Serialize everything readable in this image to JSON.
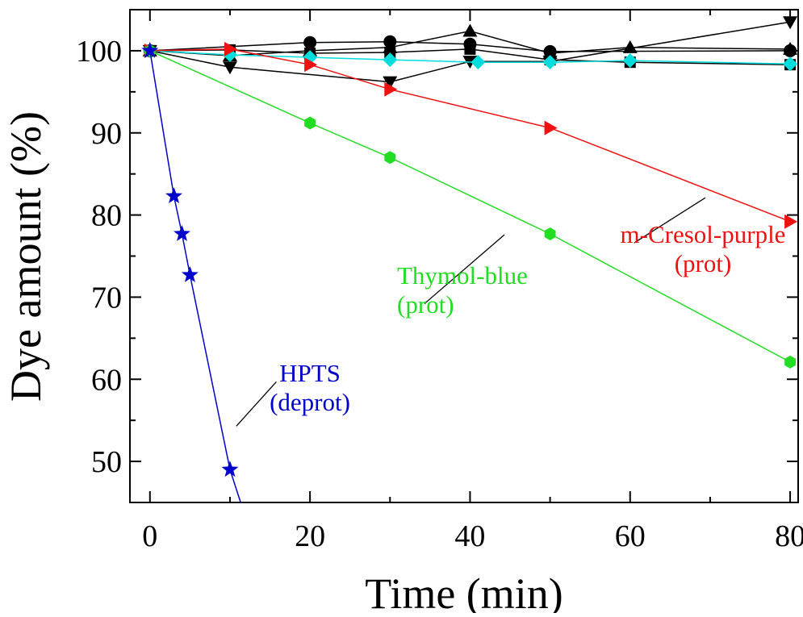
{
  "chart_data": {
    "type": "scatter",
    "xlabel": "Time (min)",
    "ylabel": "Dye amount (%)",
    "xlim": [
      -2.5,
      81
    ],
    "ylim": [
      45,
      105
    ],
    "x_ticks": [
      "0",
      "20",
      "40",
      "60",
      "80"
    ],
    "y_ticks": [
      "50",
      "60",
      "70",
      "80",
      "90",
      "100"
    ],
    "grid": false,
    "series": [
      {
        "name": "HPTS (deprot)",
        "label_lines": [
          "HPTS",
          "(deprot)"
        ],
        "color": "#0000cc",
        "marker": "star",
        "x": [
          0,
          3,
          4,
          5,
          10
        ],
        "y": [
          100,
          82.3,
          77.7,
          72.7,
          49
        ],
        "fit_line": {
          "x": [
            0,
            3,
            4,
            5,
            10,
            12
          ],
          "y": [
            100,
            82.3,
            77.7,
            72.7,
            49,
            43
          ]
        }
      },
      {
        "name": "Thymol-blue (prot)",
        "label_lines": [
          "Thymol-blue",
          "(prot)"
        ],
        "color": "#22dd22",
        "marker": "hexagon",
        "x": [
          0,
          20,
          30,
          50,
          80
        ],
        "y": [
          100,
          91.2,
          87,
          77.7,
          62.1
        ]
      },
      {
        "name": "m-Cresol-purple (prot)",
        "label_lines": [
          "m-Cresol-purple",
          "(prot)"
        ],
        "color": "#ee1111",
        "marker": "triangle-right",
        "x": [
          0,
          10,
          20,
          30,
          50,
          80
        ],
        "y": [
          100,
          100.2,
          98.3,
          95.3,
          90.6,
          79.2
        ]
      },
      {
        "color": "#00dddd",
        "marker": "diamond",
        "x": [
          0,
          10,
          20,
          30,
          41,
          50,
          60,
          80
        ],
        "y": [
          100,
          99.5,
          99.2,
          98.9,
          98.6,
          98.6,
          98.8,
          98.4
        ]
      },
      {
        "color": "#000000",
        "marker": "circle",
        "x": [
          0,
          20,
          30,
          40,
          50,
          80
        ],
        "y": [
          100,
          101,
          101.1,
          100.8,
          99.9,
          100
        ]
      },
      {
        "color": "#000000",
        "marker": "triangle-up",
        "x": [
          0,
          10,
          20,
          30,
          40,
          50,
          60,
          80
        ],
        "y": [
          100,
          99.4,
          100,
          100.4,
          102.4,
          99.7,
          100.4,
          100.2
        ]
      },
      {
        "color": "#000000",
        "marker": "triangle-down",
        "x": [
          0,
          10,
          30,
          40,
          50,
          80
        ],
        "y": [
          100,
          98,
          96.2,
          98.7,
          98.7,
          103.5
        ]
      },
      {
        "color": "#000000",
        "marker": "square",
        "x": [
          0,
          10,
          20,
          30,
          40,
          50,
          60,
          80
        ],
        "y": [
          100,
          100.1,
          99.7,
          99.8,
          100.2,
          98.9,
          98.6,
          98.3
        ]
      }
    ],
    "annotations": [
      {
        "target": "HPTS (deprot)",
        "line": {
          "x": [
            10.8,
            15.8
          ],
          "y": [
            54.3,
            59.7
          ]
        }
      },
      {
        "target": "Thymol-blue (prot)",
        "line": {
          "x": [
            34.3,
            44.3
          ],
          "y": [
            69.2,
            77.6
          ]
        }
      },
      {
        "target": "m-Cresol-purple (prot)",
        "line": {
          "x": [
            60.5,
            69.4
          ],
          "y": [
            76.6,
            82.1
          ]
        }
      }
    ]
  }
}
